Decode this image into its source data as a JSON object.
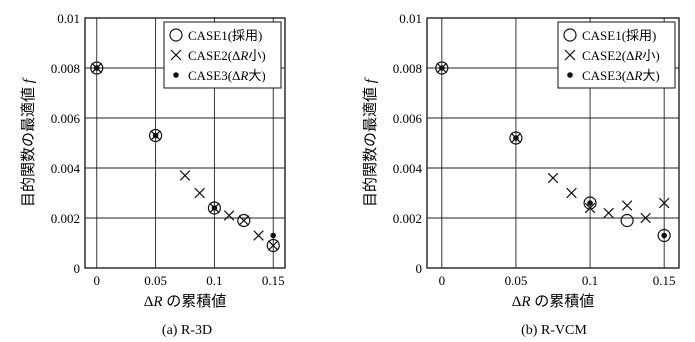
{
  "chart_data": [
    {
      "type": "scatter",
      "caption": "(a) R-3D",
      "xlabel": "ΔR の累積値",
      "ylabel": "目的関数の最適値 f",
      "xlim": [
        -0.01,
        0.16
      ],
      "ylim": [
        0,
        0.01
      ],
      "xticks": [
        0,
        0.05,
        0.1,
        0.15
      ],
      "xtick_labels": [
        "0",
        "0.05",
        "0.1",
        "0.15"
      ],
      "yticks": [
        0,
        0.002,
        0.004,
        0.006,
        0.008,
        0.01
      ],
      "ytick_labels": [
        "0",
        "0.002",
        "0.004",
        "0.006",
        "0.008",
        "0.01"
      ],
      "grid": true,
      "legend_position": "top-right",
      "series": [
        {
          "name": "CASE1(採用)",
          "marker": "circle",
          "x": [
            0,
            0.05,
            0.1,
            0.125,
            0.15
          ],
          "y": [
            0.008,
            0.0053,
            0.0024,
            0.0019,
            0.0009
          ]
        },
        {
          "name": "CASE2(ΔR小)",
          "marker": "x",
          "x": [
            0,
            0.05,
            0.075,
            0.0875,
            0.1,
            0.1125,
            0.125,
            0.1375,
            0.15
          ],
          "y": [
            0.008,
            0.0053,
            0.0037,
            0.003,
            0.0024,
            0.0021,
            0.0019,
            0.0013,
            0.0009
          ]
        },
        {
          "name": "CASE3(ΔR大)",
          "marker": "dot",
          "x": [
            0,
            0.05,
            0.1,
            0.15
          ],
          "y": [
            0.008,
            0.0053,
            0.0024,
            0.0013
          ]
        }
      ]
    },
    {
      "type": "scatter",
      "caption": "(b) R-VCM",
      "xlabel": "ΔR の累積値",
      "ylabel": "目的関数の最適値 f",
      "xlim": [
        -0.01,
        0.16
      ],
      "ylim": [
        0,
        0.01
      ],
      "xticks": [
        0,
        0.05,
        0.1,
        0.15
      ],
      "xtick_labels": [
        "0",
        "0.05",
        "0.1",
        "0.15"
      ],
      "yticks": [
        0,
        0.002,
        0.004,
        0.006,
        0.008,
        0.01
      ],
      "ytick_labels": [
        "0",
        "0.002",
        "0.004",
        "0.006",
        "0.008",
        "0.01"
      ],
      "grid": true,
      "legend_position": "top-right",
      "series": [
        {
          "name": "CASE1(採用)",
          "marker": "circle",
          "x": [
            0,
            0.05,
            0.1,
            0.125,
            0.15
          ],
          "y": [
            0.008,
            0.0052,
            0.0026,
            0.0019,
            0.0013
          ]
        },
        {
          "name": "CASE2(ΔR小)",
          "marker": "x",
          "x": [
            0,
            0.05,
            0.075,
            0.0875,
            0.1,
            0.1125,
            0.125,
            0.1375,
            0.15
          ],
          "y": [
            0.008,
            0.0052,
            0.0036,
            0.003,
            0.0024,
            0.0022,
            0.0025,
            0.002,
            0.0026
          ]
        },
        {
          "name": "CASE3(ΔR大)",
          "marker": "dot",
          "x": [
            0,
            0.05,
            0.1,
            0.15
          ],
          "y": [
            0.008,
            0.0052,
            0.0026,
            0.0013
          ]
        }
      ]
    }
  ]
}
